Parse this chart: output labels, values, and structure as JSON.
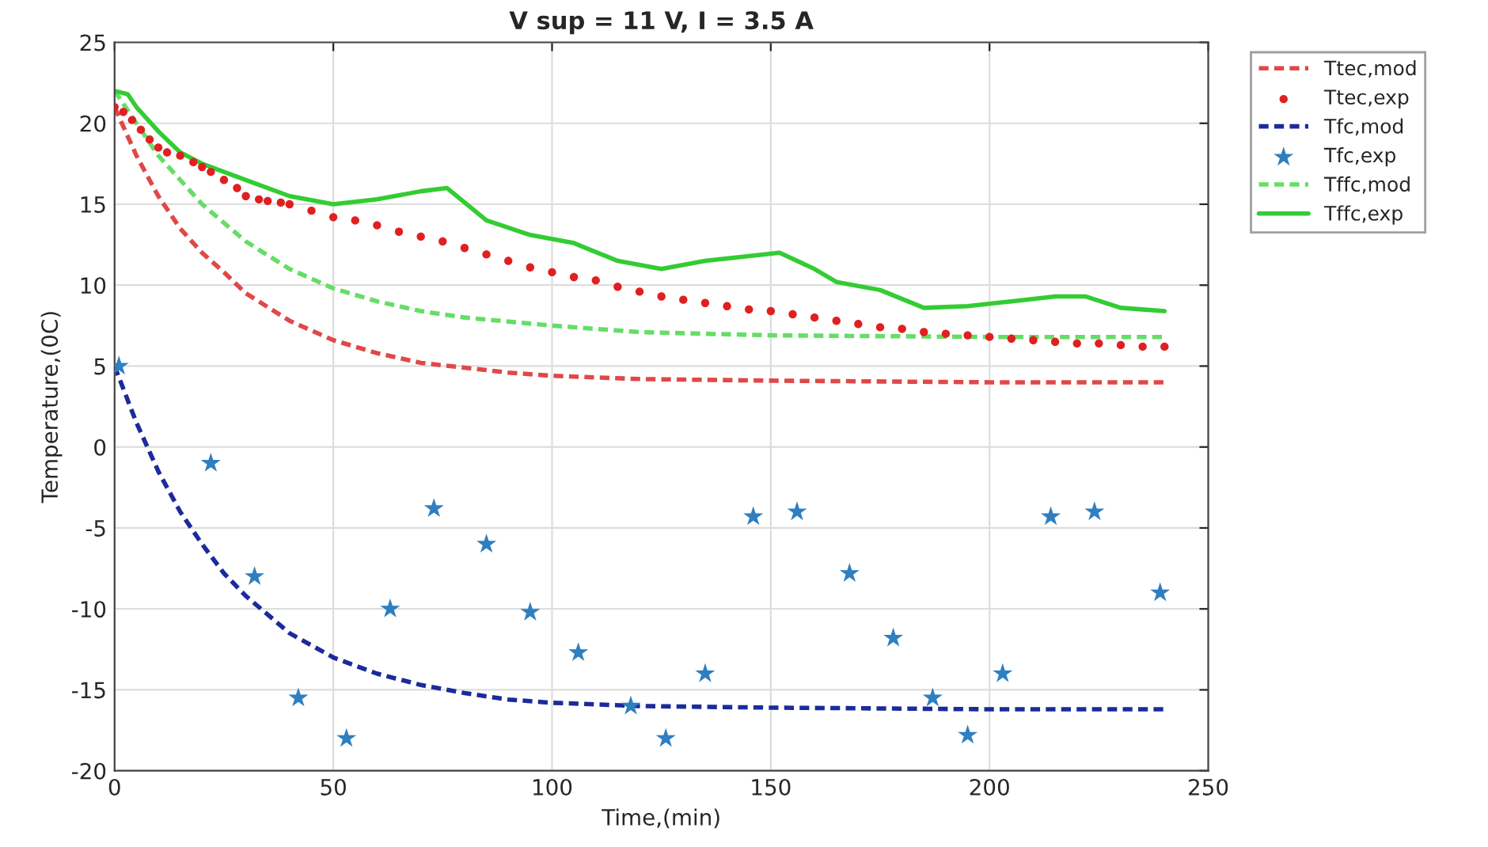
{
  "chart_data": {
    "type": "line",
    "title": "V sup = 11 V, I = 3.5 A",
    "xlabel": "Time,(min)",
    "ylabel": "Temperature,(0C)",
    "xlim": [
      0,
      250
    ],
    "xticks": [
      0,
      50,
      100,
      150,
      200,
      250
    ],
    "ylim": [
      -20,
      25
    ],
    "yticks": [
      -20,
      -15,
      -10,
      -5,
      0,
      5,
      10,
      15,
      20,
      25
    ],
    "grid": true,
    "legend": "top right",
    "series": [
      {
        "name": "Ttec,mod",
        "line_style": "dashed",
        "marker": "none",
        "color": "#e04848",
        "x": [
          0,
          5,
          10,
          15,
          20,
          25,
          30,
          40,
          50,
          60,
          70,
          80,
          90,
          100,
          120,
          150,
          200,
          240
        ],
        "values": [
          21,
          18,
          15.5,
          13.5,
          12,
          10.8,
          9.5,
          7.8,
          6.6,
          5.8,
          5.2,
          4.9,
          4.6,
          4.4,
          4.2,
          4.1,
          4,
          4
        ]
      },
      {
        "name": "Ttec,exp",
        "type": "scatter",
        "marker": "circle",
        "color": "#e02020",
        "x": [
          0,
          2,
          4,
          6,
          8,
          10,
          12,
          15,
          18,
          20,
          22,
          25,
          28,
          30,
          33,
          35,
          38,
          40,
          45,
          50,
          55,
          60,
          65,
          70,
          75,
          80,
          85,
          90,
          95,
          100,
          105,
          110,
          115,
          120,
          125,
          130,
          135,
          140,
          145,
          150,
          155,
          160,
          165,
          170,
          175,
          180,
          185,
          190,
          195,
          200,
          205,
          210,
          215,
          220,
          225,
          230,
          235,
          240
        ],
        "values": [
          21,
          20.7,
          20.2,
          19.6,
          19,
          18.5,
          18.2,
          18,
          17.6,
          17.3,
          17,
          16.5,
          16,
          15.5,
          15.3,
          15.2,
          15.1,
          15,
          14.6,
          14.2,
          14,
          13.7,
          13.3,
          13,
          12.7,
          12.3,
          11.9,
          11.5,
          11.1,
          10.8,
          10.5,
          10.3,
          9.9,
          9.6,
          9.3,
          9.1,
          8.9,
          8.7,
          8.5,
          8.4,
          8.2,
          8,
          7.8,
          7.6,
          7.4,
          7.3,
          7.1,
          7,
          6.9,
          6.8,
          6.7,
          6.6,
          6.5,
          6.4,
          6.4,
          6.3,
          6.2,
          6.2
        ]
      },
      {
        "name": "Tfc,mod",
        "line_style": "dashed",
        "marker": "none",
        "color": "#1c2a9c",
        "x": [
          0,
          5,
          10,
          15,
          20,
          25,
          30,
          40,
          50,
          60,
          70,
          80,
          90,
          100,
          120,
          150,
          200,
          240
        ],
        "values": [
          5,
          1.5,
          -1.5,
          -4,
          -6,
          -7.8,
          -9.2,
          -11.5,
          -13,
          -14,
          -14.7,
          -15.2,
          -15.6,
          -15.8,
          -16,
          -16.1,
          -16.2,
          -16.2
        ]
      },
      {
        "name": "Tfc,exp",
        "type": "scatter",
        "marker": "star",
        "color": "#2f7fc0",
        "x": [
          1,
          22,
          32,
          42,
          53,
          63,
          73,
          85,
          95,
          106,
          118,
          126,
          135,
          146,
          156,
          168,
          178,
          187,
          195,
          203,
          214,
          224,
          239
        ],
        "values": [
          5,
          -1,
          -8,
          -15.5,
          -18,
          -10,
          -3.8,
          -6,
          -10.2,
          -12.7,
          -16,
          -18,
          -14,
          -4.3,
          -4,
          -7.8,
          -11.8,
          -15.5,
          -17.8,
          -14,
          -4.3,
          -4,
          -9
        ]
      },
      {
        "name": "Tffc,mod",
        "line_style": "dashed",
        "marker": "none",
        "color": "#66dd66",
        "x": [
          0,
          10,
          20,
          30,
          40,
          50,
          60,
          70,
          80,
          100,
          120,
          150,
          200,
          240
        ],
        "values": [
          22,
          18,
          15,
          12.7,
          11,
          9.8,
          9,
          8.4,
          8,
          7.5,
          7.1,
          6.9,
          6.8,
          6.8
        ]
      },
      {
        "name": "Tffc,exp",
        "line_style": "solid",
        "marker": "none",
        "color": "#33cc33",
        "x": [
          0,
          3,
          5,
          10,
          15,
          20,
          30,
          40,
          50,
          60,
          70,
          76,
          85,
          95,
          105,
          115,
          125,
          135,
          145,
          152,
          160,
          165,
          175,
          185,
          195,
          205,
          215,
          222,
          230,
          240
        ],
        "values": [
          22,
          21.8,
          21,
          19.5,
          18.2,
          17.5,
          16.5,
          15.5,
          15,
          15.3,
          15.8,
          16,
          14,
          13.1,
          12.6,
          11.5,
          11,
          11.5,
          11.8,
          12,
          11,
          10.2,
          9.7,
          8.6,
          8.7,
          9,
          9.3,
          9.3,
          8.6,
          8.4
        ]
      }
    ]
  }
}
